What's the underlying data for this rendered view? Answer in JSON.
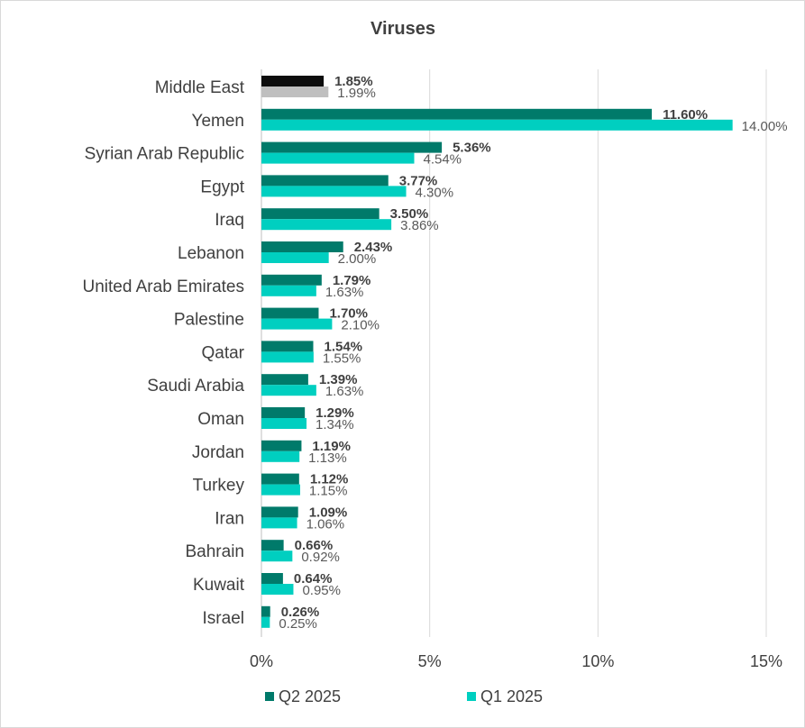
{
  "chart_data": {
    "type": "bar",
    "orientation": "horizontal",
    "title": "Viruses",
    "categories": [
      "Middle East",
      "Yemen",
      "Syrian Arab Republic",
      "Egypt",
      "Iraq",
      "Lebanon",
      "United Arab Emirates",
      "Palestine",
      "Qatar",
      "Saudi Arabia",
      "Oman",
      "Jordan",
      "Turkey",
      "Iran",
      "Bahrain",
      "Kuwait",
      "Israel"
    ],
    "series": [
      {
        "name": "Q2 2025",
        "color": "#007a6a",
        "highlight_color": "#0d0d0d",
        "values": [
          1.85,
          11.6,
          5.36,
          3.77,
          3.5,
          2.43,
          1.79,
          1.7,
          1.54,
          1.39,
          1.29,
          1.19,
          1.12,
          1.09,
          0.66,
          0.64,
          0.26
        ],
        "labels": [
          "1.85%",
          "11.60%",
          "5.36%",
          "3.77%",
          "3.50%",
          "2.43%",
          "1.79%",
          "1.70%",
          "1.54%",
          "1.39%",
          "1.29%",
          "1.19%",
          "1.12%",
          "1.09%",
          "0.66%",
          "0.64%",
          "0.26%"
        ]
      },
      {
        "name": "Q1 2025",
        "color": "#00cfc0",
        "highlight_color": "#bfbfbf",
        "values": [
          1.99,
          14.0,
          4.54,
          4.3,
          3.86,
          2.0,
          1.63,
          2.1,
          1.55,
          1.63,
          1.34,
          1.13,
          1.15,
          1.06,
          0.92,
          0.95,
          0.25
        ],
        "labels": [
          "1.99%",
          "14.00%",
          "4.54%",
          "4.30%",
          "3.86%",
          "2.00%",
          "1.63%",
          "2.10%",
          "1.55%",
          "1.63%",
          "1.34%",
          "1.13%",
          "1.15%",
          "1.06%",
          "0.92%",
          "0.95%",
          "0.25%"
        ]
      }
    ],
    "highlighted_category": "Middle East",
    "x_ticks": [
      "0%",
      "5%",
      "10%",
      "15%"
    ],
    "xlim": [
      0,
      15
    ],
    "grid": "vertical",
    "legend_position": "bottom"
  }
}
